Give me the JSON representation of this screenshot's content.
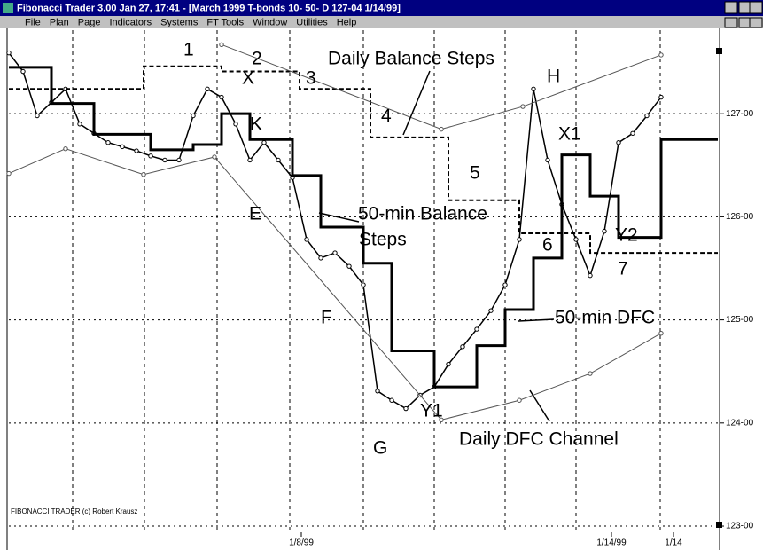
{
  "window": {
    "title": "Fibonacci Trader 3.00 Jan 27,  17:41 - [March 1999 T-bonds  10-  50- D  127-04 1/14/99]",
    "menu": [
      "File",
      "Plan",
      "Page",
      "Indicators",
      "Systems",
      "FT Tools",
      "Window",
      "Utilities",
      "Help"
    ]
  },
  "footer": "FIBONACCI TRADER (c) Robert Krausz",
  "annotations": [
    "1",
    "2",
    "X",
    "3",
    "Daily Balance Steps",
    "4",
    "K",
    "H",
    "X1",
    "5",
    "E",
    "50-min Balance",
    "Steps",
    "6",
    "Y2",
    "7",
    "F",
    "50-min DFC",
    "Y1",
    "G",
    "Daily DFC Channel"
  ],
  "chart_data": {
    "type": "line",
    "xlim": [
      0,
      100
    ],
    "ylim": [
      122.94,
      127.69
    ],
    "yticks": [
      {
        "value": 127,
        "label": "127-00"
      },
      {
        "value": 126,
        "label": "126-00"
      },
      {
        "value": 125,
        "label": "125-00"
      },
      {
        "value": 124,
        "label": "124-00"
      },
      {
        "value": 123,
        "label": "123-00"
      }
    ],
    "xticks": [
      {
        "value": 41.25,
        "label": "1/8/99"
      },
      {
        "value": 85,
        "label": "1/14/99"
      },
      {
        "value": 93.75,
        "label": "1/14"
      }
    ],
    "series": [
      {
        "style": "price",
        "color": "#000000",
        "x": [
          0,
          2,
          4,
          6,
          8,
          10,
          12,
          14,
          16,
          18,
          20,
          22,
          24,
          26,
          28,
          30,
          32,
          34,
          36,
          38,
          40,
          42,
          44,
          46,
          48,
          50,
          52,
          54,
          56,
          58,
          60,
          62,
          64,
          66,
          68,
          70,
          72,
          74,
          76,
          78,
          80,
          82,
          84,
          86,
          88,
          90,
          92
        ],
        "values": [
          127.59,
          127.41,
          126.98,
          127.11,
          127.24,
          126.9,
          126.81,
          126.72,
          126.68,
          126.64,
          126.59,
          126.55,
          126.55,
          126.98,
          127.24,
          127.16,
          126.9,
          126.55,
          126.72,
          126.55,
          126.38,
          125.78,
          125.6,
          125.65,
          125.52,
          125.34,
          124.31,
          124.22,
          124.14,
          124.27,
          124.35,
          124.57,
          124.74,
          124.91,
          125.09,
          125.34,
          125.78,
          127.24,
          126.55,
          126.12,
          125.78,
          125.43,
          125.86,
          126.72,
          126.81,
          126.98,
          127.16
        ]
      },
      {
        "style": "thick-steps",
        "color": "#000000",
        "x": [
          0,
          6,
          12,
          20,
          26,
          30,
          34,
          40,
          44,
          50,
          54,
          60,
          66,
          70,
          74,
          78,
          82,
          86,
          92
        ],
        "values": [
          127.45,
          127.1,
          126.8,
          126.65,
          126.7,
          127.0,
          126.75,
          126.4,
          125.9,
          125.55,
          124.7,
          124.35,
          124.75,
          125.1,
          125.6,
          126.6,
          126.2,
          125.8,
          126.75
        ]
      },
      {
        "style": "dashed-steps",
        "color": "#000000",
        "x": [
          0,
          19,
          30,
          41,
          51,
          62,
          72,
          82
        ],
        "values": [
          127.24,
          127.46,
          127.41,
          127.24,
          126.77,
          126.16,
          125.84,
          125.65
        ]
      },
      {
        "style": "channel",
        "color": "#555555",
        "x": [
          30,
          61,
          72.5,
          92
        ],
        "values": [
          127.67,
          126.85,
          127.07,
          127.57
        ]
      },
      {
        "style": "channel",
        "color": "#555555",
        "x": [
          0,
          8,
          19,
          29,
          61,
          72,
          82,
          92
        ],
        "values": [
          126.42,
          126.66,
          126.41,
          126.58,
          124.03,
          124.22,
          124.48,
          124.87
        ]
      }
    ]
  }
}
